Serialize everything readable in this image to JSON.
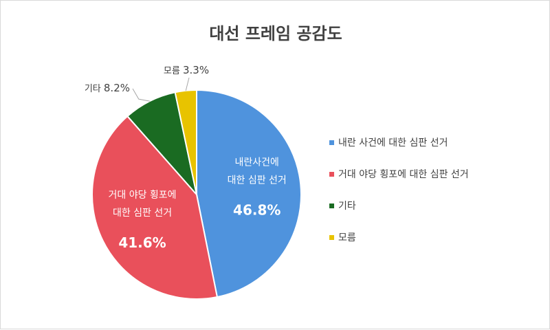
{
  "chart_data": {
    "type": "pie",
    "title": "대선 프레임 공감도",
    "slices": [
      {
        "label": "내란 사건에 대한 심판 선거",
        "value": 46.8,
        "value_label": "46.8%",
        "color": "#4f93dd",
        "inside_label_lines": [
          "내란사건에",
          "대한 심판 선거"
        ]
      },
      {
        "label": "거대 야당 횡포에 대한 심판 선거",
        "value": 41.6,
        "value_label": "41.6%",
        "color": "#e9505b",
        "inside_label_lines": [
          "거대 야당 횡포에",
          "대한 심판 선거"
        ]
      },
      {
        "label": "기타",
        "value": 8.2,
        "value_label": "8.2%",
        "color": "#1a6b22"
      },
      {
        "label": "모름",
        "value": 3.3,
        "value_label": "3.3%",
        "color": "#e8c300"
      }
    ],
    "legend_position": "right"
  }
}
